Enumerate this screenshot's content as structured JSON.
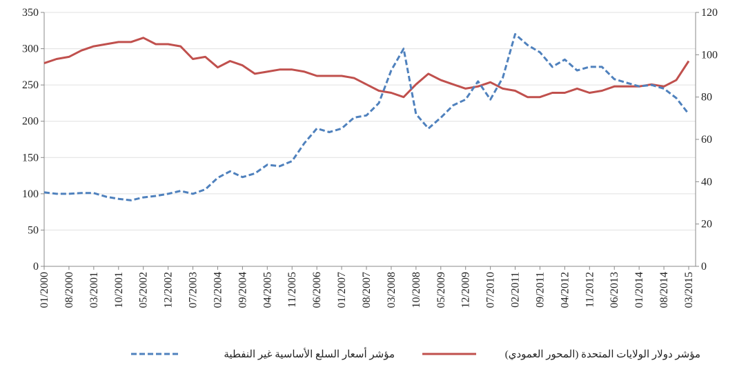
{
  "chart_data": {
    "type": "line",
    "categories": [
      "01/2000",
      null,
      "08/2000",
      null,
      "03/2001",
      null,
      "10/2001",
      null,
      "05/2002",
      null,
      "12/2002",
      null,
      "07/2003",
      null,
      "02/2004",
      null,
      "09/2004",
      null,
      "04/2005",
      null,
      "11/2005",
      null,
      "06/2006",
      null,
      "01/2007",
      null,
      "08/2007",
      null,
      "03/2008",
      null,
      "10/2008",
      null,
      "05/2009",
      null,
      "12/2009",
      null,
      "07/2010",
      null,
      "02/2011",
      null,
      "09/2011",
      null,
      "04/2012",
      null,
      "11/2012",
      null,
      "06/2013",
      null,
      "01/2014",
      null,
      "08/2014",
      null,
      "03/2015"
    ],
    "series": [
      {
        "name": "مؤشر دولار الولايات المتحدة (المحور العمودي)",
        "color": "#c0504d",
        "dash": false,
        "axis": "y2",
        "values": [
          96,
          98,
          99,
          102,
          104,
          105,
          106,
          106,
          108,
          105,
          105,
          104,
          98,
          99,
          94,
          97,
          95,
          91,
          92,
          93,
          93,
          92,
          90,
          90,
          90,
          89,
          86,
          83,
          82,
          80,
          86,
          91,
          88,
          86,
          84,
          85,
          87,
          84,
          83,
          80,
          80,
          82,
          82,
          84,
          82,
          83,
          85,
          85,
          85,
          86,
          85,
          88,
          97
        ]
      },
      {
        "name": "مؤشر أسعار السلع الأساسية غير النفطية",
        "color": "#4f81bd",
        "dash": true,
        "values": [
          102,
          100,
          100,
          101,
          101,
          96,
          93,
          91,
          95,
          97,
          100,
          104,
          100,
          106,
          122,
          131,
          123,
          128,
          140,
          138,
          145,
          170,
          190,
          185,
          190,
          205,
          208,
          225,
          270,
          300,
          210,
          190,
          205,
          222,
          230,
          255,
          230,
          260,
          320,
          305,
          295,
          275,
          285,
          270,
          275,
          275,
          258,
          253,
          248,
          250,
          245,
          232,
          210
        ]
      }
    ],
    "ylim": [
      0,
      350
    ],
    "yticks": [
      0,
      50,
      100,
      150,
      200,
      250,
      300,
      350
    ],
    "y2lim": [
      0,
      120
    ],
    "y2ticks": [
      0,
      20,
      40,
      60,
      80,
      100,
      120
    ],
    "grid": true
  }
}
